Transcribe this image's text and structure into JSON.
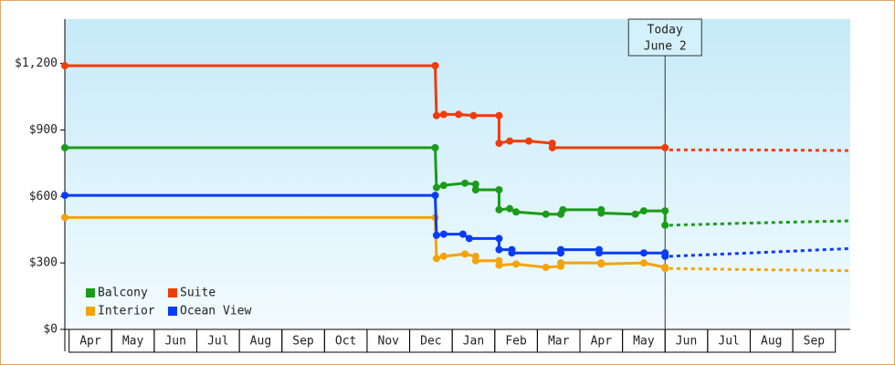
{
  "chart_data": {
    "type": "line",
    "annotation": [
      "Today",
      "June 2"
    ],
    "annotation_x": 14,
    "xlim": [
      -0.1,
      18.35
    ],
    "xticks": [
      {
        "value": 0.5,
        "label": "Apr"
      },
      {
        "value": 1.5,
        "label": "May"
      },
      {
        "value": 2.5,
        "label": "Jun"
      },
      {
        "value": 3.5,
        "label": "Jul"
      },
      {
        "value": 4.5,
        "label": "Aug"
      },
      {
        "value": 5.5,
        "label": "Sep"
      },
      {
        "value": 6.5,
        "label": "Oct"
      },
      {
        "value": 7.5,
        "label": "Nov"
      },
      {
        "value": 8.5,
        "label": "Dec"
      },
      {
        "value": 9.5,
        "label": "Jan"
      },
      {
        "value": 10.5,
        "label": "Feb"
      },
      {
        "value": 11.5,
        "label": "Mar"
      },
      {
        "value": 12.5,
        "label": "Apr"
      },
      {
        "value": 13.5,
        "label": "May"
      },
      {
        "value": 14.5,
        "label": "Jun"
      },
      {
        "value": 15.5,
        "label": "Jul"
      },
      {
        "value": 16.5,
        "label": "Aug"
      },
      {
        "value": 17.5,
        "label": "Sep"
      }
    ],
    "ylim": [
      0,
      1400
    ],
    "yticks": [
      {
        "value": 0,
        "label": "$0"
      },
      {
        "value": 300,
        "label": "$300"
      },
      {
        "value": 600,
        "label": "$600"
      },
      {
        "value": 900,
        "label": "$900"
      },
      {
        "value": 1200,
        "label": "$1,200"
      }
    ],
    "series": [
      {
        "name": "Balcony",
        "color": "#1a9c1a",
        "x": [
          -0.1,
          8.6,
          8.63,
          8.8,
          9.3,
          9.55,
          9.55,
          10.1,
          10.1,
          10.35,
          10.5,
          11.2,
          11.55,
          11.6,
          12.5,
          12.5,
          13.3,
          13.5,
          14,
          14
        ],
        "values": [
          820,
          820,
          640,
          650,
          660,
          655,
          630,
          630,
          540,
          545,
          530,
          520,
          520,
          540,
          540,
          525,
          520,
          535,
          535,
          470
        ],
        "forecast_x": [
          14.1,
          16,
          18.35
        ],
        "forecast_values": [
          470,
          480,
          490
        ]
      },
      {
        "name": "Suite",
        "color": "#f03c0a",
        "x": [
          -0.1,
          8.6,
          8.63,
          8.8,
          9.15,
          9.5,
          10.1,
          10.1,
          10.35,
          10.8,
          11.35,
          11.35,
          14
        ],
        "values": [
          1190,
          1190,
          965,
          970,
          970,
          965,
          965,
          840,
          850,
          850,
          840,
          820,
          820
        ],
        "forecast_x": [
          14.1,
          16,
          18.35
        ],
        "forecast_values": [
          810,
          810,
          807
        ]
      },
      {
        "name": "Interior",
        "color": "#f5a30a",
        "x": [
          -0.1,
          8.6,
          8.63,
          8.8,
          9.3,
          9.55,
          9.55,
          10.1,
          10.1,
          10.5,
          11.2,
          11.55,
          11.55,
          12.5,
          12.5,
          13.5,
          14,
          14
        ],
        "values": [
          505,
          505,
          320,
          330,
          340,
          330,
          310,
          310,
          290,
          295,
          280,
          285,
          300,
          300,
          295,
          300,
          280,
          275
        ],
        "forecast_x": [
          14.1,
          16,
          18.35
        ],
        "forecast_values": [
          275,
          270,
          265
        ]
      },
      {
        "name": "Ocean View",
        "color": "#0a3cf5",
        "x": [
          -0.1,
          8.6,
          8.63,
          8.8,
          9.25,
          9.4,
          10.1,
          10.1,
          10.4,
          10.4,
          11.55,
          11.55,
          12.45,
          12.45,
          13.5,
          14,
          14
        ],
        "values": [
          605,
          605,
          425,
          430,
          430,
          410,
          410,
          360,
          360,
          345,
          345,
          360,
          360,
          345,
          345,
          345,
          330
        ],
        "forecast_x": [
          14.1,
          16,
          18.35
        ],
        "forecast_values": [
          330,
          345,
          365
        ]
      }
    ]
  }
}
